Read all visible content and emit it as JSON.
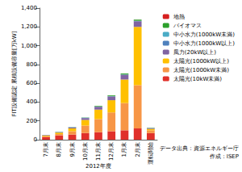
{
  "chart_data": {
    "type": "bar",
    "stacked": true,
    "grid": false,
    "legend": "right",
    "y_label": "FIT設備認定 累積設備容量[万kW]",
    "x_label": "2012年度",
    "annotations": [
      "データ出典：資源エネルギー庁",
      "作成：ISEP"
    ],
    "categories": [
      "7月末",
      "8月末",
      "9月末",
      "10月末",
      "11月末",
      "12月末",
      "1月末",
      "2月末",
      "運転開始"
    ],
    "ylim": [
      0,
      1400
    ],
    "yticks": [
      0,
      200,
      400,
      600,
      800,
      {
        "value": 1000,
        "label": "1,000"
      },
      {
        "value": 1200,
        "label": "1,200"
      },
      {
        "value": 1400,
        "label": "1,400"
      }
    ],
    "series": [
      {
        "name": "太陽光(10kW未満)",
        "color": "#e0302a",
        "values": [
          30,
          45,
          55,
          70,
          80,
          90,
          100,
          120,
          70
        ]
      },
      {
        "name": "太陽光(1000kW未満)",
        "color": "#f79646",
        "values": [
          5,
          15,
          35,
          80,
          140,
          200,
          290,
          460,
          30
        ]
      },
      {
        "name": "太陽光(1000kW以上)",
        "color": "#ffc000",
        "values": [
          10,
          15,
          30,
          60,
          100,
          130,
          250,
          620,
          15
        ]
      },
      {
        "name": "風力(20kW以上)",
        "color": "#8064a2",
        "values": [
          5,
          5,
          10,
          20,
          30,
          40,
          50,
          60,
          8
        ]
      },
      {
        "name": "中小水力(1000kW以上)",
        "color": "#4f81bd",
        "values": [
          1,
          1,
          1,
          2,
          2,
          2,
          3,
          3,
          1
        ]
      },
      {
        "name": "中小水力(1000kW未満)",
        "color": "#4bacc6",
        "values": [
          0,
          1,
          1,
          1,
          1,
          1,
          1,
          2,
          0
        ]
      },
      {
        "name": "バイオマス",
        "color": "#2ca02c",
        "values": [
          0,
          1,
          2,
          3,
          5,
          8,
          10,
          12,
          3
        ]
      },
      {
        "name": "地熱",
        "color": "#d62020",
        "values": [
          0,
          0,
          0,
          0,
          0,
          0,
          0,
          0.4,
          0
        ]
      }
    ]
  }
}
